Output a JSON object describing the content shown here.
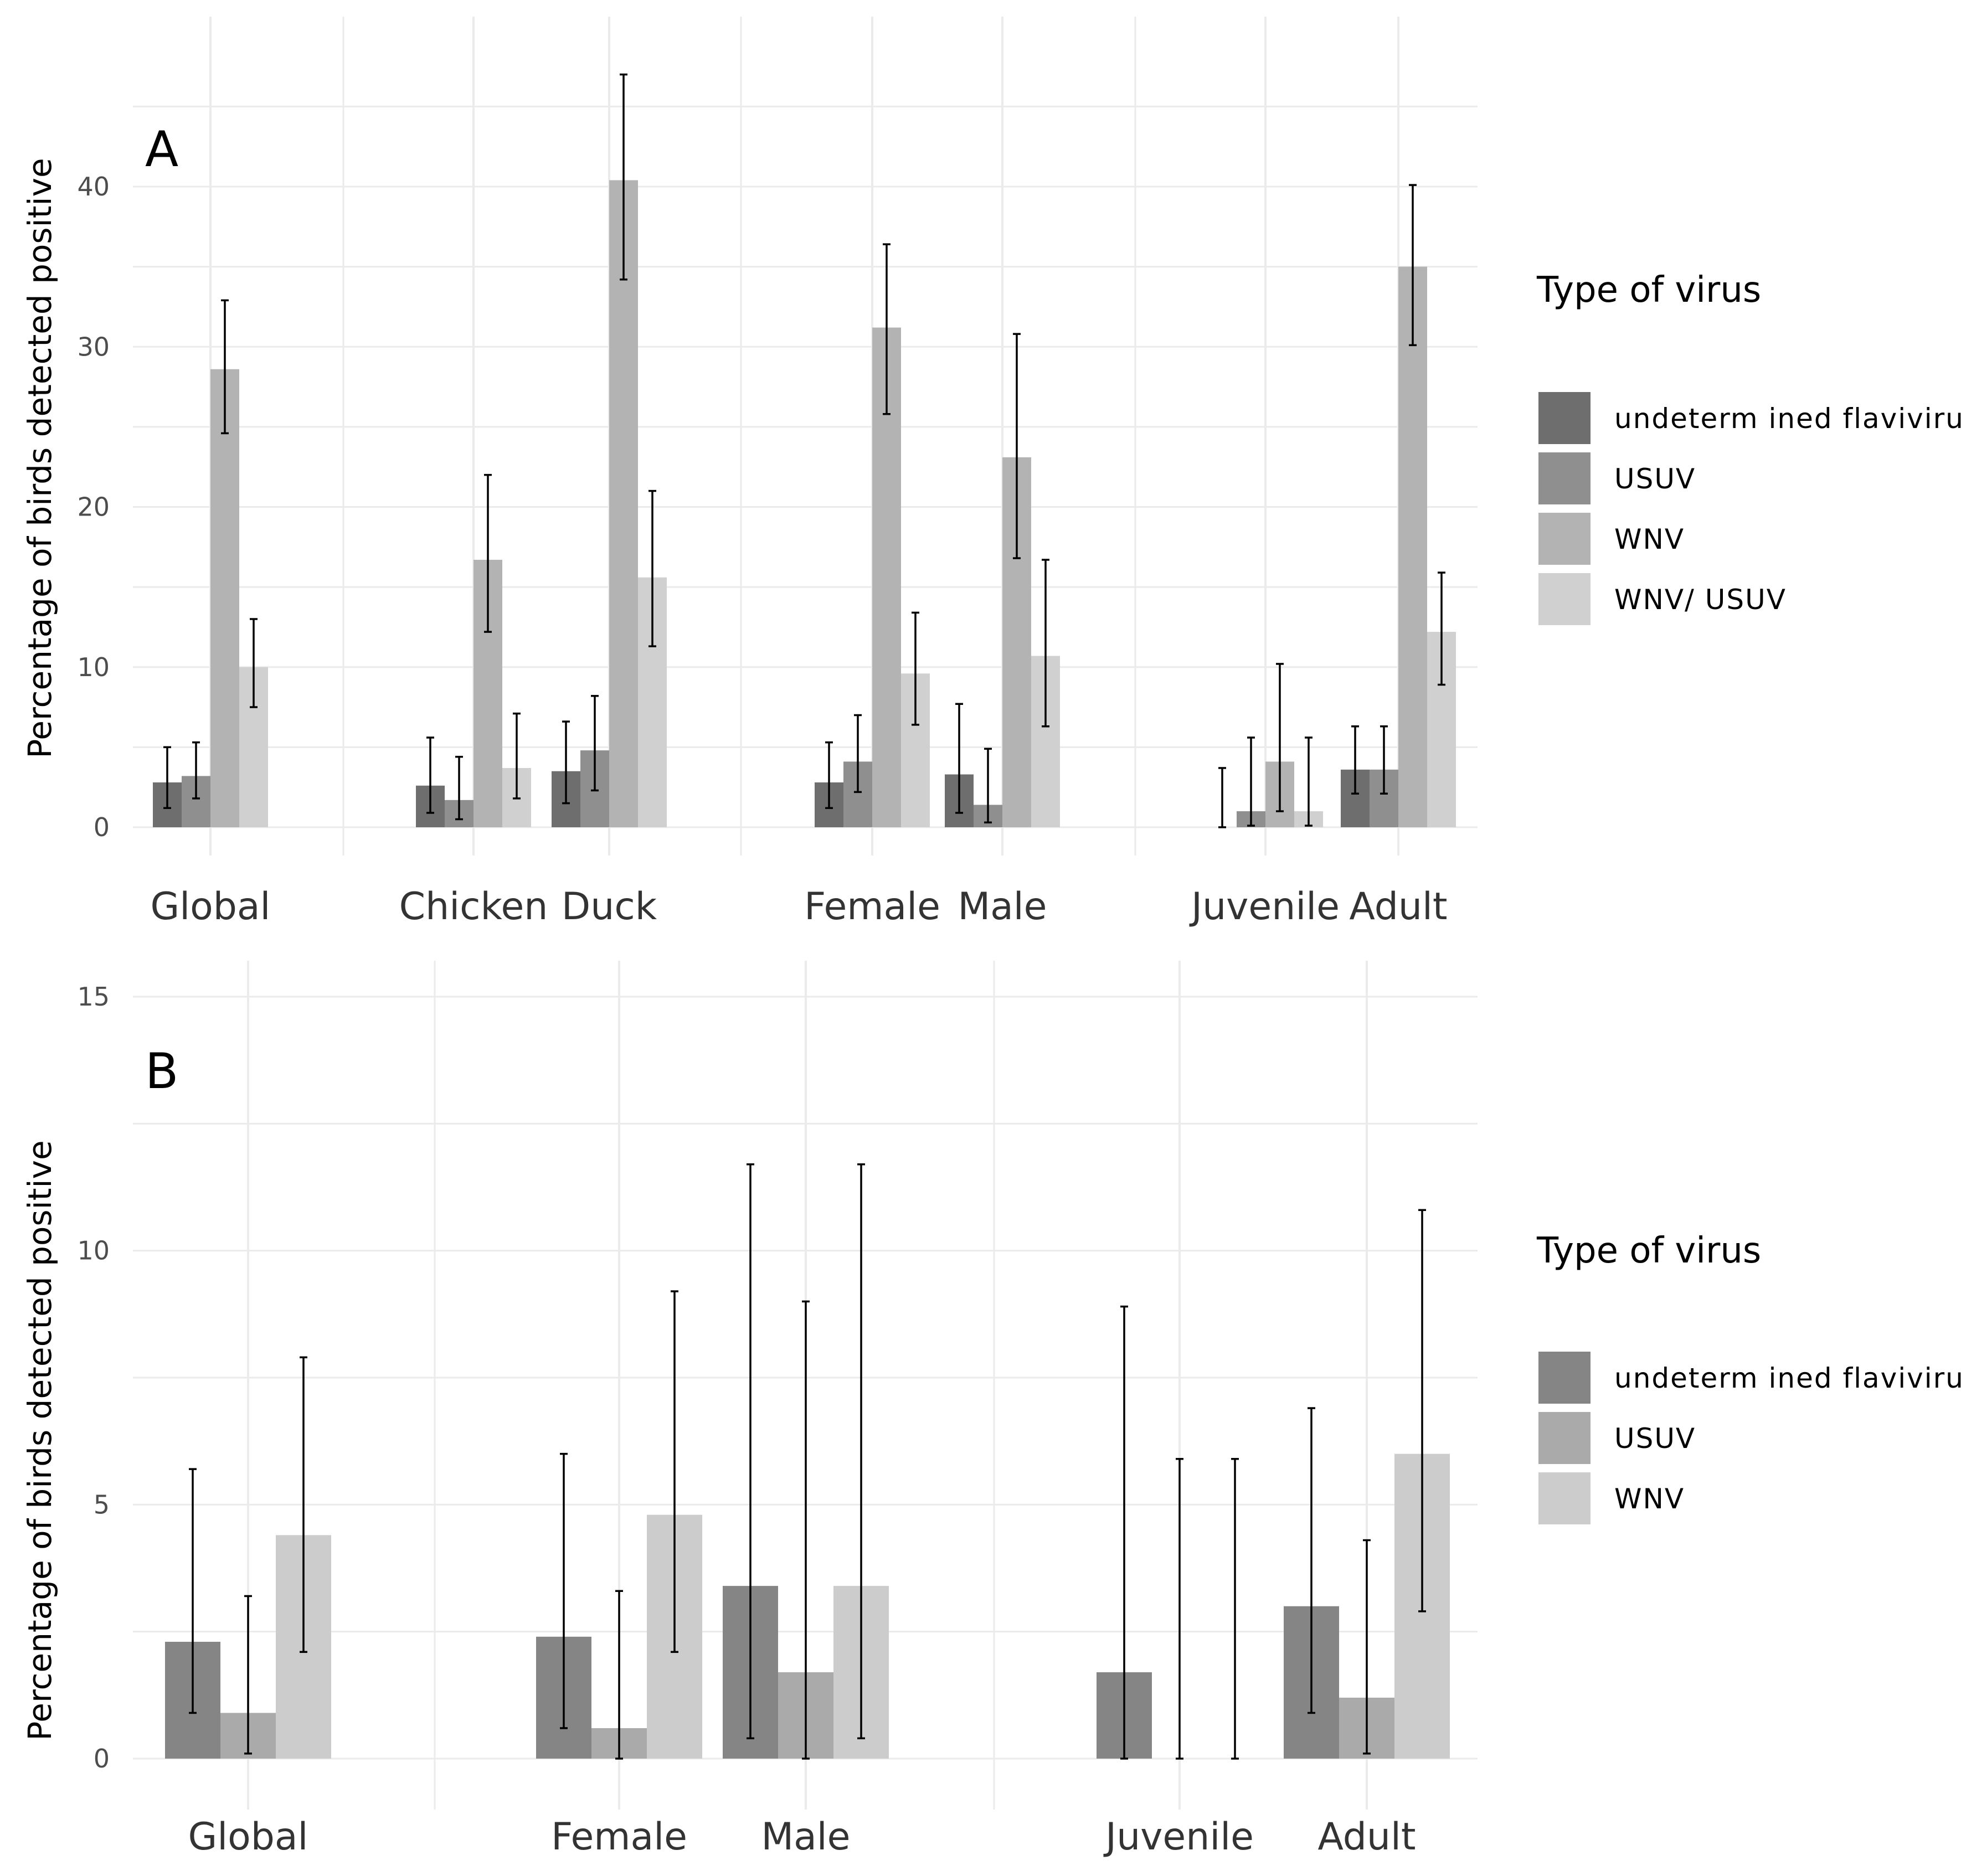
{
  "chart_data": [
    {
      "type": "bar",
      "panel_label": "A",
      "ylabel": "Percentage of birds detected positive",
      "ylim": [
        0,
        47
      ],
      "yticks": [
        0,
        10,
        20,
        30,
        40
      ],
      "ytick_labels": [
        "0",
        "10",
        "20",
        "30",
        "40"
      ],
      "grid": true,
      "categories": [
        "Global",
        "Chicken",
        "Duck",
        "Female",
        "Male",
        "Juvenile",
        "Adult"
      ],
      "category_groups": [
        [
          "Global"
        ],
        [
          "Chicken",
          "Duck"
        ],
        [
          "Female",
          "Male"
        ],
        [
          "Juvenile",
          "Adult"
        ]
      ],
      "legend_title": "Type of virus",
      "legend_position": "right",
      "series": [
        {
          "name": "undeterm ined flavivirus",
          "color": "#6e6e6e",
          "values": [
            2.8,
            2.6,
            3.5,
            2.8,
            3.3,
            0,
            3.6
          ],
          "err_low": [
            1.2,
            0.9,
            1.5,
            1.2,
            0.9,
            0,
            2.1
          ],
          "err_high": [
            5.0,
            5.6,
            6.6,
            5.3,
            7.7,
            3.7,
            6.3
          ]
        },
        {
          "name": "USUV",
          "color": "#8f8f8f",
          "values": [
            3.2,
            1.7,
            4.8,
            4.1,
            1.4,
            1.0,
            3.6
          ],
          "err_low": [
            1.8,
            0.5,
            2.3,
            2.2,
            0.3,
            0.1,
            2.1
          ],
          "err_high": [
            5.3,
            4.4,
            8.2,
            7.0,
            4.9,
            5.6,
            6.3
          ]
        },
        {
          "name": "WNV",
          "color": "#b3b3b3",
          "values": [
            28.6,
            16.7,
            40.4,
            31.2,
            23.1,
            4.1,
            35.0
          ],
          "err_low": [
            24.6,
            12.2,
            34.2,
            25.8,
            16.8,
            1.0,
            30.1
          ],
          "err_high": [
            32.9,
            22.0,
            47.0,
            36.4,
            30.8,
            10.2,
            40.1
          ]
        },
        {
          "name": "WNV/ USUV",
          "color": "#d0d0d0",
          "values": [
            10.0,
            3.7,
            15.6,
            9.6,
            10.7,
            1.0,
            12.2
          ],
          "err_low": [
            7.5,
            1.8,
            11.3,
            6.4,
            6.3,
            0.1,
            8.9
          ],
          "err_high": [
            13.0,
            7.1,
            21.0,
            13.4,
            16.7,
            5.6,
            15.9
          ]
        }
      ]
    },
    {
      "type": "bar",
      "panel_label": "B",
      "ylabel": "Percentage of birds detected positive",
      "ylim": [
        0,
        15
      ],
      "yticks": [
        0,
        5,
        10,
        15
      ],
      "ytick_labels": [
        "0",
        "5",
        "10",
        "15"
      ],
      "grid": true,
      "categories": [
        "Global",
        "Female",
        "Male",
        "Juvenile",
        "Adult"
      ],
      "category_groups": [
        [
          "Global"
        ],
        [
          "Female",
          "Male"
        ],
        [
          "Juvenile",
          "Adult"
        ]
      ],
      "legend_title": "Type of virus",
      "legend_position": "right",
      "series": [
        {
          "name": "undeterm ined flavivirus",
          "color": "#858585",
          "values": [
            2.3,
            2.4,
            3.4,
            1.7,
            3.0
          ],
          "err_low": [
            0.9,
            0.6,
            0.4,
            0.0,
            0.9
          ],
          "err_high": [
            5.7,
            6.0,
            11.7,
            8.9,
            6.9
          ]
        },
        {
          "name": "USUV",
          "color": "#aaaaaa",
          "values": [
            0.9,
            0.6,
            1.7,
            0,
            1.2
          ],
          "err_low": [
            0.1,
            0.0,
            0.0,
            0.0,
            0.1
          ],
          "err_high": [
            3.2,
            3.3,
            9.0,
            5.9,
            4.3
          ]
        },
        {
          "name": "WNV",
          "color": "#cccccc",
          "values": [
            4.4,
            4.8,
            3.4,
            0,
            6.0
          ],
          "err_low": [
            2.1,
            2.1,
            0.4,
            0.0,
            2.9
          ],
          "err_high": [
            7.9,
            9.2,
            11.7,
            5.9,
            10.8
          ]
        }
      ]
    }
  ]
}
